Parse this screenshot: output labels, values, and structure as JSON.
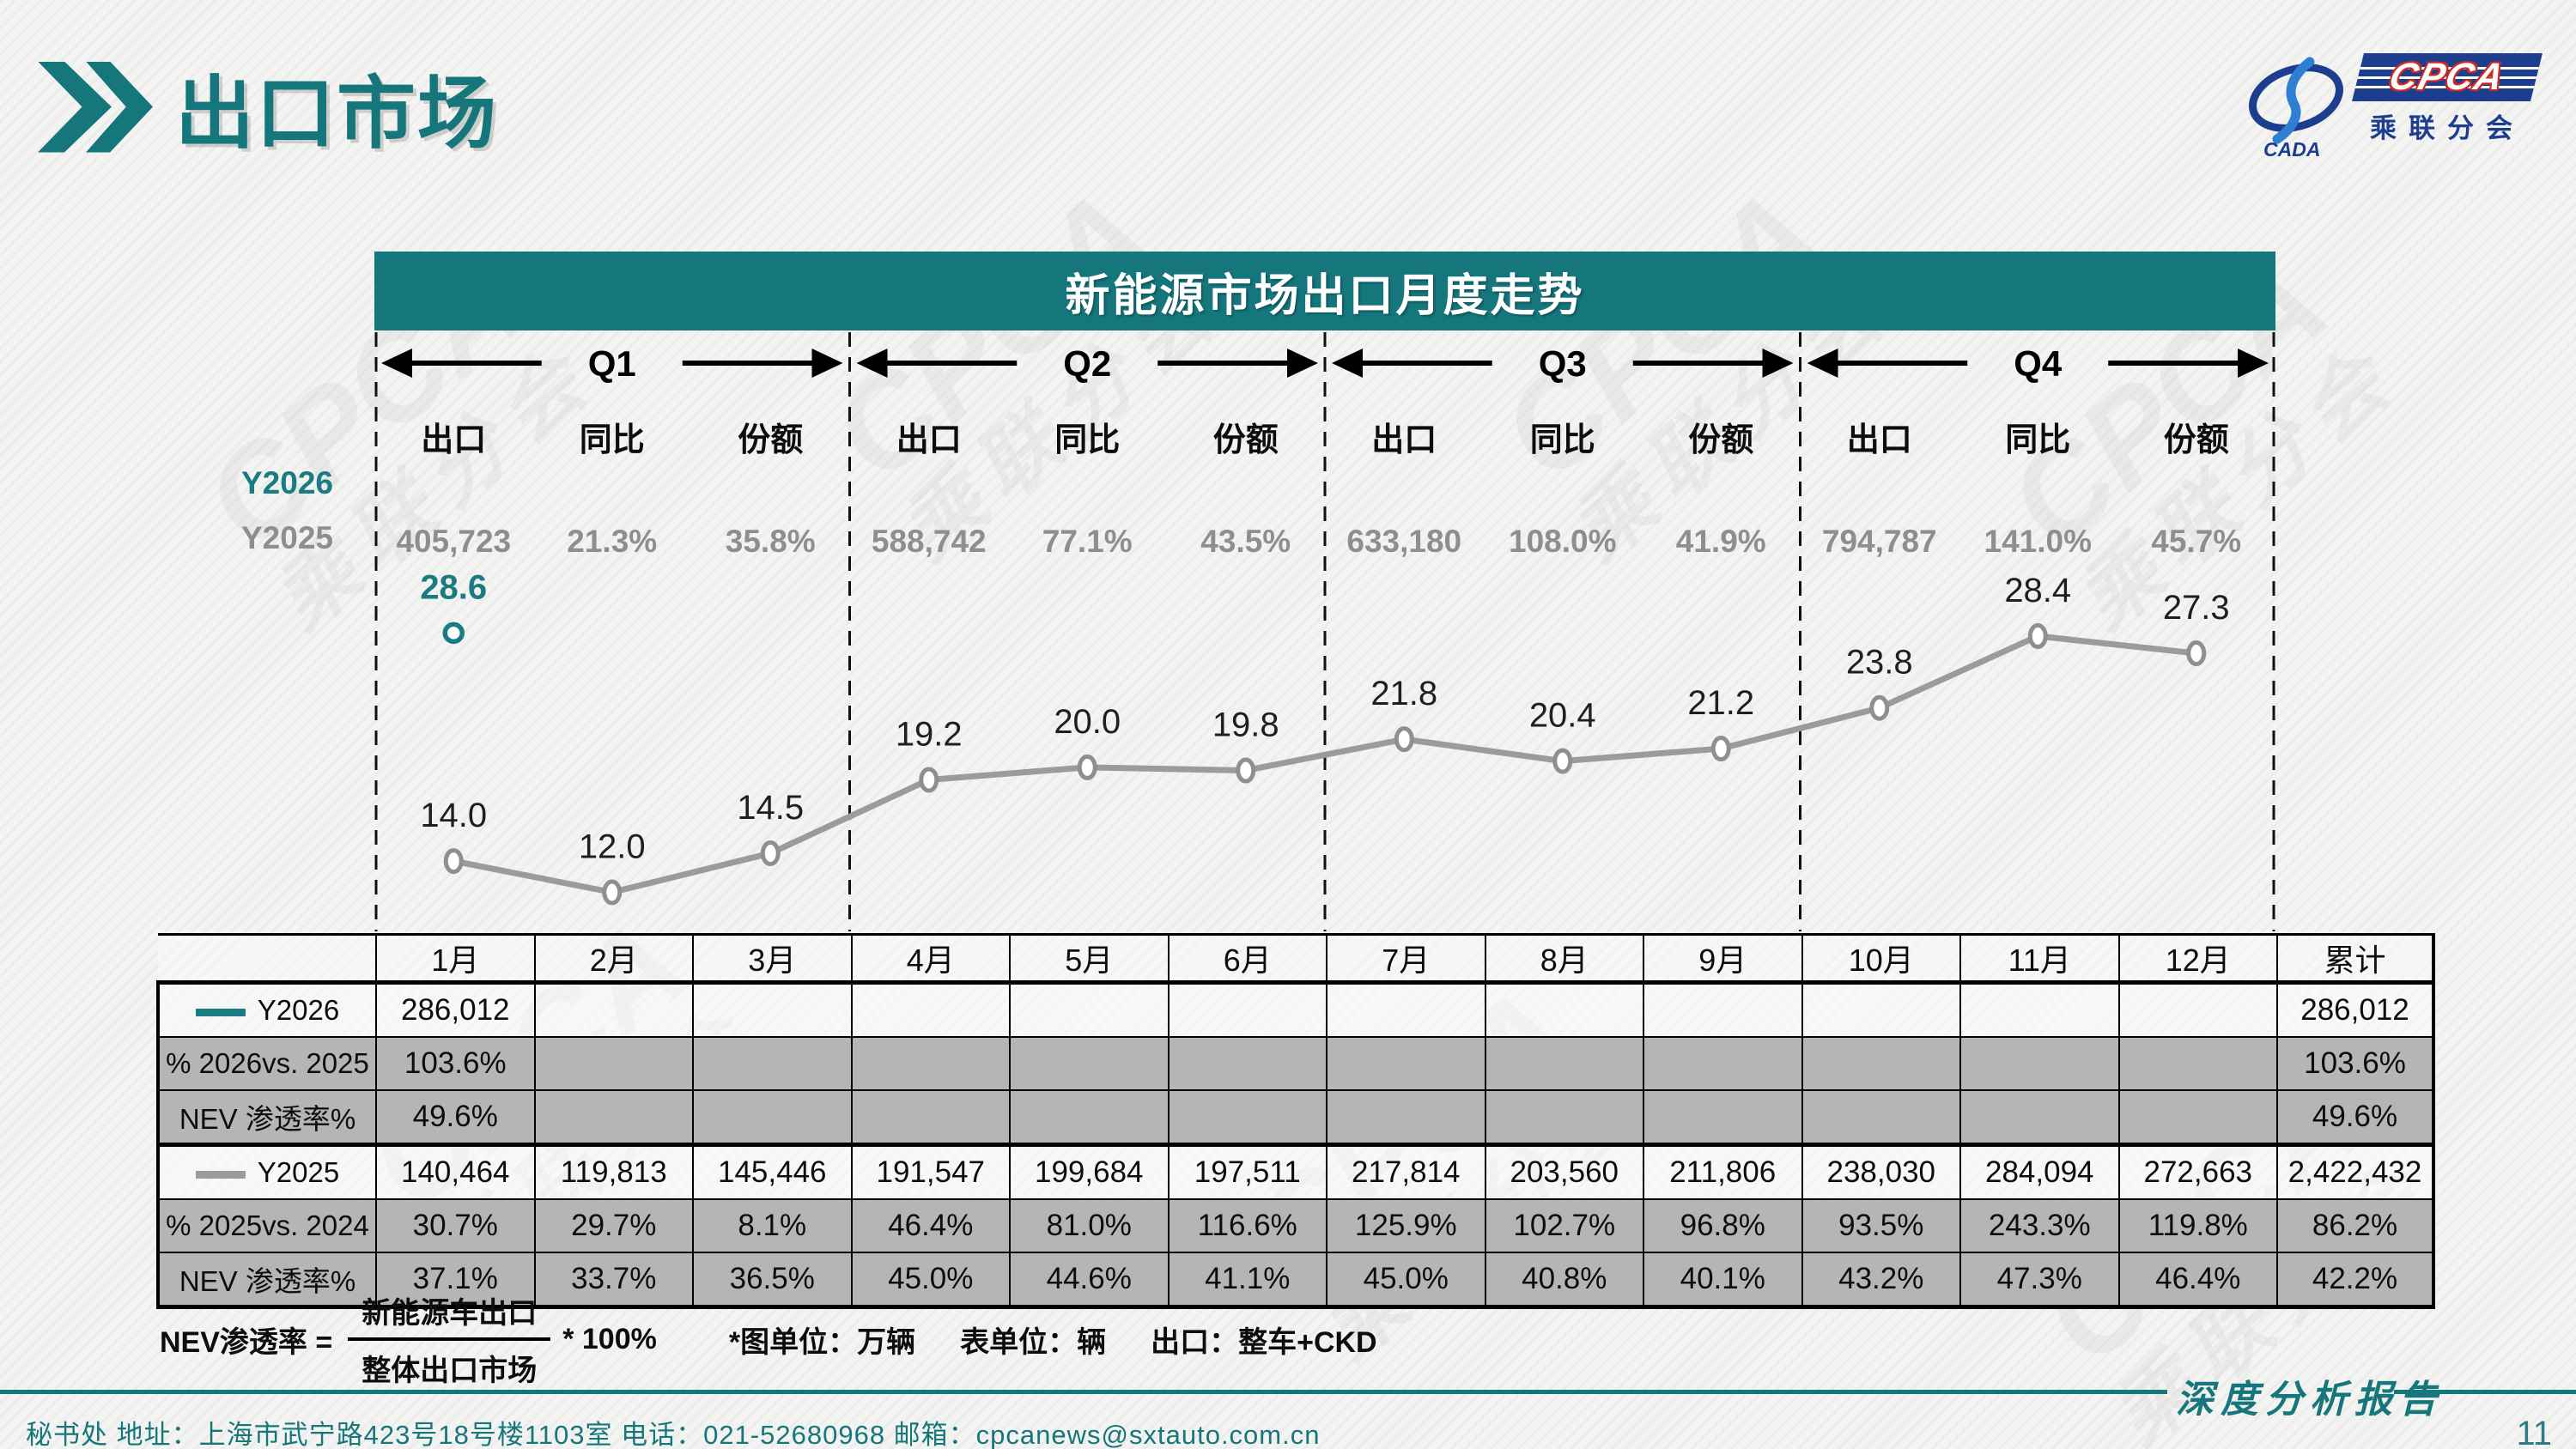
{
  "page": {
    "title": "出口市场",
    "page_number": "11",
    "report_type_label": "深度分析报告",
    "footer": "秘书处   地址：上海市武宁路423号18号楼1103室  电话：021-52680968   邮箱：cpcanews@sxtauto.com.cn"
  },
  "logo": {
    "cpca": "CPCA",
    "cada": "CADA",
    "sub": "乘联分会"
  },
  "watermark": {
    "text": "CPCA",
    "sub": "乘联分会"
  },
  "chart": {
    "banner_title": "新能源市场出口月度走势",
    "col_headers": [
      "出口",
      "同比",
      "份额"
    ],
    "series_labels": {
      "y2026": "Y2026",
      "y2025": "Y2025"
    },
    "quarters": [
      {
        "label": "Q1",
        "export": "405,723",
        "yoy": "21.3%",
        "share": "35.8%"
      },
      {
        "label": "Q2",
        "export": "588,742",
        "yoy": "77.1%",
        "share": "43.5%"
      },
      {
        "label": "Q3",
        "export": "633,180",
        "yoy": "108.0%",
        "share": "41.9%"
      },
      {
        "label": "Q4",
        "export": "794,787",
        "yoy": "141.0%",
        "share": "45.7%"
      }
    ]
  },
  "chart_data": {
    "type": "line",
    "title": "新能源市场出口月度走势",
    "unit_note": "图单位：万辆",
    "categories": [
      "1月",
      "2月",
      "3月",
      "4月",
      "5月",
      "6月",
      "7月",
      "8月",
      "9月",
      "10月",
      "11月",
      "12月"
    ],
    "ylim": [
      9.5,
      33
    ],
    "grid": false,
    "quarter_separators": true,
    "series": [
      {
        "name": "Y2026",
        "color": "#1a7b82",
        "label_color": "#1a7b82",
        "bold": true,
        "values": [
          28.6,
          null,
          null,
          null,
          null,
          null,
          null,
          null,
          null,
          null,
          null,
          null
        ]
      },
      {
        "name": "Y2025",
        "color": "#9b9b9b",
        "label_color": "#1f1f1f",
        "bold": false,
        "values": [
          14.0,
          12.0,
          14.5,
          19.2,
          20.0,
          19.8,
          21.8,
          20.4,
          21.2,
          23.8,
          28.4,
          27.3
        ]
      }
    ]
  },
  "table": {
    "month_headers": [
      "1月",
      "2月",
      "3月",
      "4月",
      "5月",
      "6月",
      "7月",
      "8月",
      "9月",
      "10月",
      "11月",
      "12月",
      "累计"
    ],
    "rows": [
      {
        "label": "Y2026",
        "legend_color": "#1a7b82",
        "shaded": false,
        "values": [
          "286,012",
          "",
          "",
          "",
          "",
          "",
          "",
          "",
          "",
          "",
          "",
          "",
          "286,012"
        ]
      },
      {
        "label": "% 2026vs. 2025",
        "shaded": true,
        "values": [
          "103.6%",
          "",
          "",
          "",
          "",
          "",
          "",
          "",
          "",
          "",
          "",
          "",
          "103.6%"
        ]
      },
      {
        "label": "NEV 渗透率%",
        "shaded": true,
        "values": [
          "49.6%",
          "",
          "",
          "",
          "",
          "",
          "",
          "",
          "",
          "",
          "",
          "",
          "49.6%"
        ]
      },
      {
        "label": "Y2025",
        "legend_color": "#9b9b9b",
        "shaded": false,
        "values": [
          "140,464",
          "119,813",
          "145,446",
          "191,547",
          "199,684",
          "197,511",
          "217,814",
          "203,560",
          "211,806",
          "238,030",
          "284,094",
          "272,663",
          "2,422,432"
        ]
      },
      {
        "label": "% 2025vs. 2024",
        "shaded": true,
        "values": [
          "30.7%",
          "29.7%",
          "8.1%",
          "46.4%",
          "81.0%",
          "116.6%",
          "125.9%",
          "102.7%",
          "96.8%",
          "93.5%",
          "243.3%",
          "119.8%",
          "86.2%"
        ]
      },
      {
        "label": "NEV 渗透率%",
        "shaded": true,
        "values": [
          "37.1%",
          "33.7%",
          "36.5%",
          "45.0%",
          "44.6%",
          "41.1%",
          "45.0%",
          "40.8%",
          "40.1%",
          "43.2%",
          "47.3%",
          "46.4%",
          "42.2%"
        ]
      }
    ]
  },
  "formula": {
    "lhs": "NEV渗透率 =",
    "numerator": "新能源车出口",
    "denominator": "整体出口市场",
    "multiplier": "* 100%",
    "notes": [
      "*图单位：万辆",
      "表单位：辆",
      "出口：整车+CKD"
    ]
  }
}
